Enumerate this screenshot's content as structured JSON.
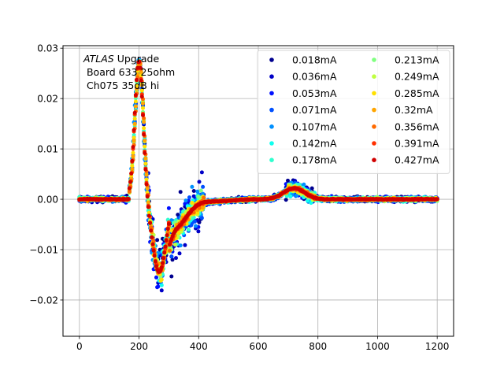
{
  "chart_data": {
    "type": "scatter",
    "title": "",
    "xlabel": "",
    "ylabel": "",
    "annotation": {
      "italic": "ATLAS",
      "line1_rest": " Upgrade",
      "line2": " Board 633 25ohm",
      "line3": " Ch075 35dB hi"
    },
    "xlim": [
      -55,
      1255
    ],
    "ylim": [
      -0.0272,
      0.0305
    ],
    "xticks": [
      0,
      200,
      400,
      600,
      800,
      1000,
      1200
    ],
    "xtick_labels": [
      "0",
      "200",
      "400",
      "600",
      "800",
      "1000",
      "1200"
    ],
    "yticks": [
      -0.02,
      -0.01,
      0.0,
      0.01,
      0.02,
      0.03
    ],
    "ytick_labels": [
      "−0.02",
      "−0.01",
      "0.00",
      "0.01",
      "0.02",
      "0.03"
    ],
    "grid": true,
    "legend_position": "upper-right",
    "legend_columns": 2,
    "series": [
      {
        "name": "0.018mA",
        "color": "#00008f",
        "amplitude": 0.027
      },
      {
        "name": "0.036mA",
        "color": "#0000c7",
        "amplitude": 0.027
      },
      {
        "name": "0.053mA",
        "color": "#0010ff",
        "amplitude": 0.027
      },
      {
        "name": "0.071mA",
        "color": "#0050ff",
        "amplitude": 0.027
      },
      {
        "name": "0.107mA",
        "color": "#0090ff",
        "amplitude": 0.027
      },
      {
        "name": "0.142mA",
        "color": "#10ffef",
        "amplitude": 0.027
      },
      {
        "name": "0.178mA",
        "color": "#30ffcf",
        "amplitude": 0.027
      },
      {
        "name": "0.213mA",
        "color": "#80ff80",
        "amplitude": 0.027
      },
      {
        "name": "0.249mA",
        "color": "#bfff40",
        "amplitude": 0.027
      },
      {
        "name": "0.285mA",
        "color": "#ffe000",
        "amplitude": 0.027
      },
      {
        "name": "0.32mA",
        "color": "#ffa500",
        "amplitude": 0.027
      },
      {
        "name": "0.356mA",
        "color": "#ff6a00",
        "amplitude": 0.027
      },
      {
        "name": "0.391mA",
        "color": "#ff3000",
        "amplitude": 0.027
      },
      {
        "name": "0.427mA",
        "color": "#d00000",
        "amplitude": 0.027
      }
    ]
  }
}
